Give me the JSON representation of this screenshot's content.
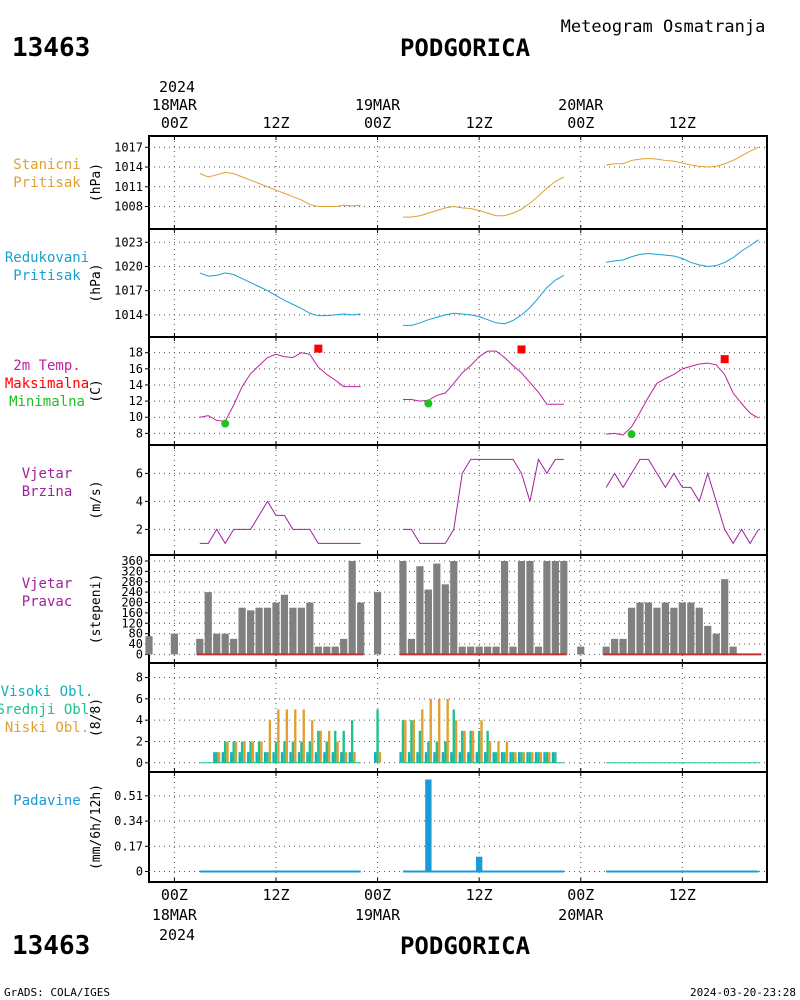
{
  "header": {
    "station_id": "13463",
    "station_name": "PODGORICA",
    "subtitle": "Meteogram Osmatranja"
  },
  "footer": {
    "station_id": "13463",
    "station_name": "PODGORICA",
    "credit": "GrADS: COLA/IGES",
    "timestamp": "2024-03-20-23:28"
  },
  "colors": {
    "pressure_station": "#e0a030",
    "pressure_reduced": "#1aa0d0",
    "temp_line": "#c020a0",
    "temp_max": "#ff0000",
    "temp_min": "#20c020",
    "wind": "#a020a0",
    "direction_bar": "#808080",
    "cloud_high": "#10b0c0",
    "cloud_mid": "#20c090",
    "cloud_low": "#e0a030",
    "precip": "#1a9ad8"
  },
  "time_axis": {
    "top_year": "2024",
    "bottom_year": "2024",
    "day_labels": [
      "18MAR",
      "19MAR",
      "20MAR"
    ],
    "tick_labels": [
      "00Z",
      "12Z",
      "00Z",
      "12Z",
      "00Z",
      "12Z"
    ],
    "tick_hours": [
      0,
      12,
      24,
      36,
      48,
      60
    ],
    "hour_range": [
      -3,
      70
    ]
  },
  "chart_data": [
    {
      "type": "line",
      "panel": "station_pressure",
      "label_lines": [
        "Stanicni",
        "Pritisak"
      ],
      "ylabel": "(hPa)",
      "yticks": [
        1008,
        1011,
        1014,
        1017
      ],
      "ylim": [
        1005.5,
        1017.8
      ],
      "series": [
        {
          "x": [
            3,
            4,
            5,
            6,
            7,
            8,
            9,
            10,
            11,
            12,
            13,
            14,
            15,
            16,
            17,
            18,
            19,
            20,
            21,
            22,
            27,
            28,
            29,
            30,
            31,
            32,
            33,
            34,
            35,
            36,
            37,
            38,
            39,
            40,
            41,
            42,
            43,
            44,
            45,
            46,
            51,
            52,
            53,
            54,
            55,
            56,
            57,
            58,
            59,
            60,
            61,
            62,
            63,
            64,
            65,
            66,
            67,
            68,
            69
          ],
          "y": [
            1013,
            1012.5,
            1012.8,
            1013.2,
            1013,
            1012.5,
            1012,
            1011.5,
            1011,
            1010.5,
            1010,
            1009.5,
            1009,
            1008.3,
            1008,
            1008,
            1008,
            1008.2,
            1008.1,
            1008.2,
            1006.4,
            1006.4,
            1006.6,
            1007,
            1007.4,
            1007.8,
            1008,
            1007.8,
            1007.7,
            1007.4,
            1007,
            1006.6,
            1006.6,
            1007,
            1007.6,
            1008.5,
            1009.6,
            1010.8,
            1011.8,
            1012.5,
            1014.3,
            1014.5,
            1014.5,
            1015,
            1015.2,
            1015.3,
            1015.2,
            1015,
            1014.9,
            1014.6,
            1014.3,
            1014.1,
            1014,
            1014.1,
            1014.5,
            1015,
            1015.7,
            1016.4,
            1017
          ]
        }
      ]
    },
    {
      "type": "line",
      "panel": "reduced_pressure",
      "label_lines": [
        "Redukovani",
        "Pritisak"
      ],
      "ylabel": "(hPa)",
      "yticks": [
        1014,
        1017,
        1020,
        1023
      ],
      "ylim": [
        1012,
        1023.9
      ],
      "series": [
        {
          "x": [
            3,
            4,
            5,
            6,
            7,
            8,
            9,
            10,
            11,
            12,
            13,
            14,
            15,
            16,
            17,
            18,
            19,
            20,
            21,
            22,
            27,
            28,
            29,
            30,
            31,
            32,
            33,
            34,
            35,
            36,
            37,
            38,
            39,
            40,
            41,
            42,
            43,
            44,
            45,
            46,
            51,
            52,
            53,
            54,
            55,
            56,
            57,
            58,
            59,
            60,
            61,
            62,
            63,
            64,
            65,
            66,
            67,
            68,
            69
          ],
          "y": [
            1019.2,
            1018.8,
            1018.9,
            1019.2,
            1019,
            1018.5,
            1018,
            1017.5,
            1017,
            1016.4,
            1015.8,
            1015.3,
            1014.8,
            1014.2,
            1013.9,
            1013.9,
            1014,
            1014.1,
            1014,
            1014.1,
            1012.7,
            1012.7,
            1013,
            1013.4,
            1013.7,
            1014,
            1014.2,
            1014.1,
            1014,
            1013.8,
            1013.4,
            1013,
            1012.9,
            1013.3,
            1014,
            1014.9,
            1016.1,
            1017.4,
            1018.3,
            1018.9,
            1020.5,
            1020.7,
            1020.8,
            1021.2,
            1021.5,
            1021.6,
            1021.5,
            1021.4,
            1021.3,
            1021,
            1020.5,
            1020.2,
            1020,
            1020.1,
            1020.5,
            1021.1,
            1021.9,
            1022.6,
            1023.3
          ]
        }
      ]
    },
    {
      "type": "line",
      "panel": "temperature",
      "label_lines": [
        "2m Temp.",
        "Maksimalna",
        "Minimalna"
      ],
      "ylabel": "(C)",
      "yticks": [
        8,
        10,
        12,
        14,
        16,
        18
      ],
      "ylim": [
        7.3,
        19.2
      ],
      "series": [
        {
          "name": "2m Temp.",
          "x": [
            3,
            4,
            5,
            6,
            7,
            8,
            9,
            10,
            11,
            12,
            13,
            14,
            15,
            16,
            17,
            18,
            19,
            20,
            21,
            22,
            27,
            28,
            29,
            30,
            31,
            32,
            33,
            34,
            35,
            36,
            37,
            38,
            39,
            40,
            41,
            42,
            43,
            44,
            45,
            46,
            51,
            52,
            53,
            54,
            55,
            56,
            57,
            58,
            59,
            60,
            61,
            62,
            63,
            64,
            65,
            66,
            67,
            68,
            69
          ],
          "y": [
            10,
            10.2,
            9.6,
            9.5,
            11.5,
            13.8,
            15.4,
            16.4,
            17.4,
            17.8,
            17.5,
            17.4,
            18,
            17.8,
            16.2,
            15.3,
            14.6,
            13.8,
            13.8,
            13.8,
            12.2,
            12.2,
            12,
            12.1,
            12.7,
            13,
            14.2,
            15.5,
            16.4,
            17.5,
            18.2,
            18.2,
            17.4,
            16.4,
            15.5,
            14.3,
            13.1,
            11.6,
            11.6,
            11.6,
            7.9,
            8,
            7.8,
            8.8,
            10.6,
            12.5,
            14.2,
            14.8,
            15.3,
            16,
            16.3,
            16.6,
            16.7,
            16.5,
            15.3,
            13,
            11.7,
            10.5,
            9.9
          ],
          "break_after": [
            17,
            39
          ]
        }
      ],
      "max_points": [
        {
          "x": 17,
          "y": 18.5
        },
        {
          "x": 41,
          "y": 18.4
        },
        {
          "x": 65,
          "y": 17.2
        }
      ],
      "min_points": [
        {
          "x": 6,
          "y": 9.2
        },
        {
          "x": 30,
          "y": 11.7
        },
        {
          "x": 54,
          "y": 7.9
        }
      ]
    },
    {
      "type": "line",
      "panel": "wind_speed",
      "label_lines": [
        "Vjetar",
        "Brzina"
      ],
      "ylabel": "(m/s)",
      "yticks": [
        2,
        4,
        6
      ],
      "ylim": [
        0.6,
        7.6
      ],
      "series": [
        {
          "x": [
            3,
            4,
            5,
            6,
            7,
            8,
            9,
            10,
            11,
            12,
            13,
            14,
            15,
            16,
            17,
            18,
            19,
            20,
            21,
            22,
            27,
            28,
            29,
            30,
            31,
            32,
            33,
            34,
            35,
            36,
            37,
            38,
            39,
            40,
            41,
            42,
            43,
            44,
            45,
            46,
            51,
            52,
            53,
            54,
            55,
            56,
            57,
            58,
            59,
            60,
            61,
            62,
            63,
            64,
            65,
            66,
            67,
            68,
            69
          ],
          "y": [
            1,
            1,
            2,
            1,
            2,
            2,
            2,
            3,
            4,
            3,
            3,
            2,
            2,
            2,
            1,
            1,
            1,
            1,
            1,
            1,
            2,
            2,
            1,
            1,
            1,
            1,
            2,
            6,
            7,
            7,
            7,
            7,
            7,
            7,
            6,
            4,
            7,
            6,
            7,
            7,
            5,
            6,
            5,
            6,
            7,
            7,
            6,
            5,
            6,
            5,
            5,
            4,
            6,
            4,
            2,
            1,
            2,
            1,
            2
          ]
        }
      ]
    },
    {
      "type": "bar",
      "panel": "wind_direction",
      "label_lines": [
        "Vjetar",
        "Pravac"
      ],
      "ylabel": "(stepeni)",
      "yticks": [
        0,
        40,
        80,
        120,
        160,
        200,
        240,
        280,
        320,
        360
      ],
      "ylim": [
        -10,
        360
      ],
      "x": [
        -3,
        0,
        3,
        4,
        5,
        6,
        7,
        8,
        9,
        10,
        11,
        12,
        13,
        14,
        15,
        16,
        17,
        18,
        19,
        20,
        21,
        22,
        24,
        27,
        28,
        29,
        30,
        31,
        32,
        33,
        34,
        35,
        36,
        37,
        38,
        39,
        40,
        41,
        42,
        43,
        44,
        45,
        46,
        48,
        51,
        52,
        53,
        54,
        55,
        56,
        57,
        58,
        59,
        60,
        61,
        62,
        63,
        64,
        65,
        66,
        67,
        68,
        69
      ],
      "values": [
        70,
        80,
        60,
        240,
        80,
        80,
        60,
        180,
        170,
        180,
        180,
        200,
        230,
        180,
        180,
        200,
        30,
        30,
        30,
        60,
        360,
        200,
        240,
        360,
        60,
        340,
        250,
        350,
        270,
        360,
        30,
        30,
        30,
        30,
        30,
        360,
        30,
        360,
        360,
        30,
        360,
        360,
        360,
        30,
        30,
        60,
        60,
        180,
        200,
        200,
        180,
        200,
        180,
        200,
        200,
        180,
        110,
        80,
        290,
        30,
        0,
        0,
        0
      ],
      "values_note": "",
      "calm_line_color": "#c03030"
    },
    {
      "type": "bar",
      "panel": "cloud_cover",
      "label_lines": [
        "Visoki Obl.",
        "Srednji Obl.",
        "Niski Obl."
      ],
      "ylabel": "(8/8)",
      "yticks": [
        0,
        2,
        4,
        6,
        8
      ],
      "ylim": [
        -0.3,
        8.8
      ],
      "x": [
        5,
        6,
        7,
        8,
        9,
        10,
        11,
        12,
        13,
        14,
        15,
        16,
        17,
        18,
        19,
        20,
        21,
        24,
        27,
        28,
        29,
        30,
        31,
        32,
        33,
        34,
        35,
        36,
        37,
        38,
        39,
        40,
        41,
        42,
        43,
        44,
        45
      ],
      "series": [
        {
          "name": "Visoki Obl.",
          "values": [
            1,
            1,
            1,
            1,
            1,
            1,
            1,
            1,
            1,
            1,
            1,
            1,
            1,
            1,
            1,
            1,
            1,
            1,
            1,
            1,
            1,
            1,
            1,
            1,
            1,
            1,
            1,
            1,
            1,
            1,
            1,
            1,
            1,
            1,
            1,
            1,
            1
          ]
        },
        {
          "name": "Srednji Obl.",
          "values": [
            1,
            2,
            2,
            2,
            2,
            2,
            1,
            2,
            2,
            2,
            2,
            2,
            3,
            2,
            3,
            3,
            4,
            5,
            4,
            4,
            3,
            2,
            2,
            2,
            5,
            3,
            3,
            3,
            3,
            1,
            1,
            1,
            1,
            1,
            1,
            1,
            1
          ]
        },
        {
          "name": "Niski Obl.",
          "values": [
            1,
            2,
            2,
            2,
            2,
            2,
            4,
            5,
            5,
            5,
            5,
            4,
            3,
            3,
            2,
            1,
            1,
            1,
            4,
            4,
            5,
            6,
            6,
            6,
            4,
            3,
            3,
            4,
            2,
            2,
            2,
            1,
            1,
            1,
            1,
            1,
            0
          ]
        }
      ]
    },
    {
      "type": "bar",
      "panel": "precipitation",
      "label_lines": [
        "Padavine"
      ],
      "ylabel": "(mm/6h/12h)",
      "yticks": [
        "0",
        "0.17",
        "0.34",
        "0.51"
      ],
      "ytick_values": [
        0,
        0.17,
        0.34,
        0.51
      ],
      "ylim": [
        -0.03,
        0.63
      ],
      "x": [
        30,
        36
      ],
      "values": [
        0.62,
        0.1
      ]
    }
  ]
}
